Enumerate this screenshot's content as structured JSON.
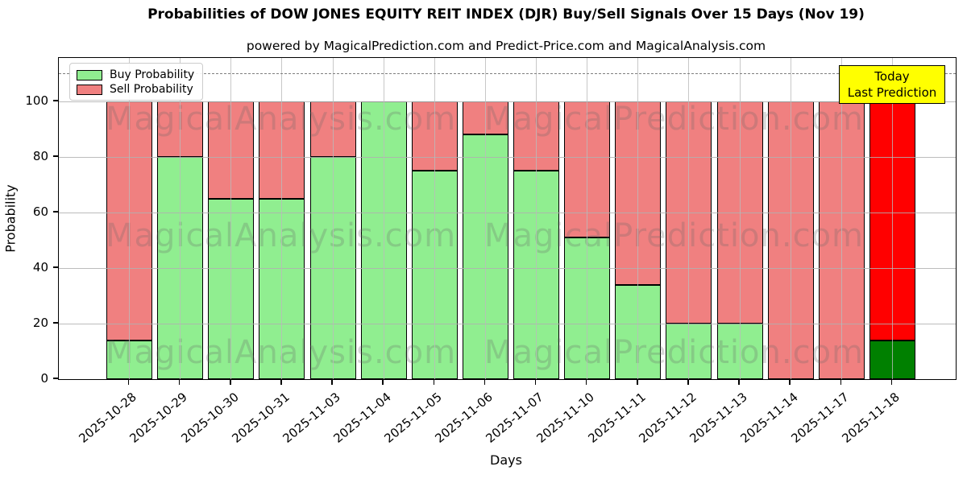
{
  "title": "Probabilities of DOW JONES EQUITY REIT INDEX (DJR) Buy/Sell Signals Over 15 Days (Nov 19)",
  "subtitle": "powered by MagicalPrediction.com and Predict-Price.com and MagicalAnalysis.com",
  "legend": {
    "buy_label": "Buy Probability",
    "sell_label": "Sell Probability"
  },
  "annotation": {
    "line1": "Today",
    "line2": "Last Prediction"
  },
  "watermarks": {
    "analysis": "MagicalAnalysis.com",
    "prediction": "MagicalPrediction.com"
  },
  "colors": {
    "buy": "#90ee90",
    "sell": "#f08080",
    "last_buy": "#008000",
    "last_sell": "#ff0000",
    "annotation_bg": "#ffff00",
    "bar_edge": "#000000",
    "grid": "#b0b0b0"
  },
  "chart_data": {
    "type": "bar",
    "stacked": true,
    "title": "Probabilities of DOW JONES EQUITY REIT INDEX (DJR) Buy/Sell Signals Over 15 Days (Nov 19)",
    "xlabel": "Days",
    "ylabel": "Probability",
    "categories": [
      "2025-10-28",
      "2025-10-29",
      "2025-10-30",
      "2025-10-31",
      "2025-11-03",
      "2025-11-04",
      "2025-11-05",
      "2025-11-06",
      "2025-11-07",
      "2025-11-10",
      "2025-11-11",
      "2025-11-12",
      "2025-11-13",
      "2025-11-14",
      "2025-11-17",
      "2025-11-18"
    ],
    "series": [
      {
        "name": "Buy Probability",
        "color": "#90ee90",
        "values": [
          14,
          80,
          65,
          65,
          80,
          100,
          75,
          88,
          75,
          51,
          34,
          20,
          20,
          0,
          0,
          14
        ]
      },
      {
        "name": "Sell Probability",
        "color": "#f08080",
        "values": [
          86,
          20,
          35,
          35,
          20,
          0,
          25,
          12,
          25,
          49,
          66,
          80,
          80,
          100,
          100,
          86
        ]
      }
    ],
    "last_bar_colors": {
      "buy": "#008000",
      "sell": "#ff0000"
    },
    "yticks": [
      0,
      20,
      40,
      60,
      80,
      100
    ],
    "ylim": [
      0,
      116
    ],
    "dashed_line_y": 110,
    "grid": true,
    "legend_position": "upper left"
  }
}
